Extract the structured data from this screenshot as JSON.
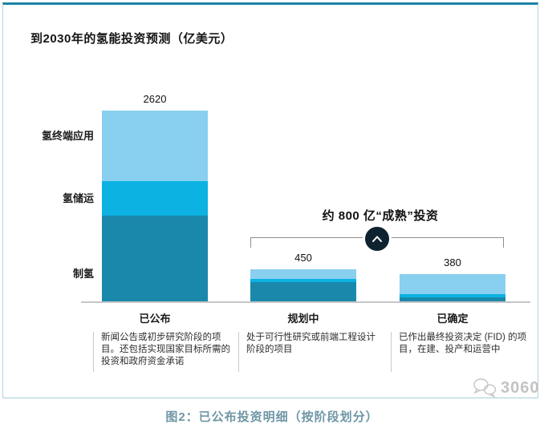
{
  "chart_data": {
    "type": "bar",
    "stacked": true,
    "title": "到2030年的氢能投资预测（亿美元）",
    "unit": "亿美元",
    "categories": [
      "已公布",
      "规划中",
      "已确定"
    ],
    "totals": [
      2620,
      450,
      380
    ],
    "series": [
      {
        "name": "制氢",
        "color": "#1A88AB",
        "values": [
          1180,
          275,
          70
        ]
      },
      {
        "name": "氢储运",
        "color": "#0BB2E2",
        "values": [
          480,
          45,
          45
        ]
      },
      {
        "name": "氢终端应用",
        "color": "#89CFEF",
        "values": [
          960,
          130,
          265
        ]
      }
    ],
    "axis_labels_left": [
      "氢终端应用",
      "氢储运",
      "制氢"
    ],
    "annotation": {
      "text": "约 800 亿“成熟”投资",
      "covers": [
        "规划中",
        "已确定"
      ]
    },
    "ylim": [
      0,
      2620
    ],
    "grid": false,
    "legend_position": "left"
  },
  "notes": [
    "新闻公告或初步研究阶段的项目。还包括实现国家目标所需的投资和政府资金承诺",
    "处于可行性研究或前端工程设计阶段的项目",
    "已作出最终投资决定 (FID) 的项目，在建、投产和运营中"
  ],
  "watermark": {
    "icon": "speech-bubbles-icon",
    "text": "3060"
  },
  "caption": "图2：已公布投资明细（按阶段划分）",
  "colors": {
    "accent_border": "#1B84A5",
    "light_blue": "#89CFEF",
    "cyan": "#0BB2E2",
    "dark_teal": "#1A88AB",
    "annotation_circle": "#0E2230",
    "caption_text": "#6E96A5"
  }
}
